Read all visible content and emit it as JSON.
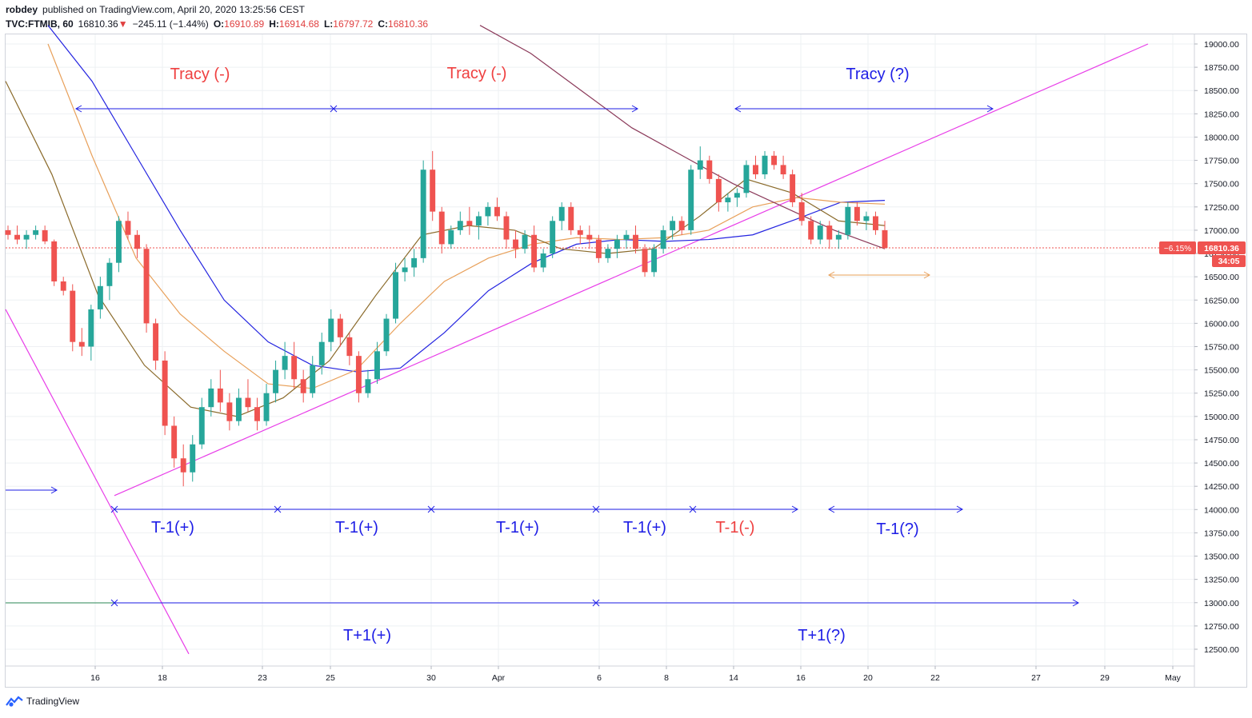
{
  "header": {
    "author": "robdey",
    "published": "published on TradingView.com, April 20, 2020 13:25:56 CEST",
    "symbol": "TVC:FTMIB, 60",
    "last": "16810.36",
    "change_arrow": "▼",
    "change": "−245.11 (−1.44%)",
    "o_label": "O:",
    "o_value": "16910.89",
    "h_label": "H:",
    "h_value": "16914.68",
    "l_label": "L:",
    "l_value": "16797.72",
    "c_label": "C:",
    "c_value": "16810.36"
  },
  "footer": {
    "brand": "TradingView",
    "logo_icon": "tradingview-logo-icon"
  },
  "price_badge": {
    "pct": "−6.15%",
    "price": "16810.36",
    "countdown": "34:05",
    "color": "#ef5350"
  },
  "colors": {
    "up": "#26a69a",
    "down": "#ef5350",
    "annotation_blue": "#1e1ee6",
    "annotation_red": "#ef4040",
    "trendline": "#e83ee8",
    "ma_blue": "#2424e0",
    "ma_orange": "#e8a05a",
    "ma_brown": "#8a6a2a",
    "ma_maroon": "#8b3a5a"
  },
  "chart_data": {
    "type": "candlestick",
    "instrument": "FTSE MIB (TVC:FTMIB)",
    "timeframe": "60",
    "y_axis": {
      "min": 12400,
      "max": 19050,
      "ticks": [
        "19000.00",
        "18750.00",
        "18500.00",
        "18250.00",
        "18000.00",
        "17750.00",
        "17500.00",
        "17250.00",
        "17000.00",
        "16750.00",
        "16500.00",
        "16250.00",
        "16000.00",
        "15750.00",
        "15500.00",
        "15250.00",
        "15000.00",
        "14750.00",
        "14500.00",
        "14250.00",
        "14000.00",
        "13750.00",
        "13500.00",
        "13250.00",
        "13000.00",
        "12750.00",
        "12500.00"
      ]
    },
    "x_axis": {
      "ticks": [
        "16",
        "18",
        "23",
        "25",
        "30",
        "Apr",
        "6",
        "8",
        "14",
        "16",
        "20",
        "22",
        "27",
        "29",
        "May"
      ]
    },
    "last_price": 16810.36,
    "candles_ohlc": [
      [
        17000,
        17050,
        16900,
        16950
      ],
      [
        16950,
        17050,
        16850,
        16900
      ],
      [
        16900,
        17000,
        16800,
        16950
      ],
      [
        16950,
        17050,
        16900,
        17000
      ],
      [
        17000,
        17050,
        16850,
        16880
      ],
      [
        16880,
        16900,
        16400,
        16450
      ],
      [
        16450,
        16500,
        16300,
        16350
      ],
      [
        16350,
        16420,
        15700,
        15800
      ],
      [
        15800,
        15950,
        15650,
        15750
      ],
      [
        15750,
        16200,
        15600,
        16150
      ],
      [
        16150,
        16500,
        16050,
        16400
      ],
      [
        16400,
        16700,
        16250,
        16650
      ],
      [
        16650,
        17150,
        16550,
        17100
      ],
      [
        17100,
        17200,
        16900,
        16950
      ],
      [
        16950,
        17000,
        16700,
        16800
      ],
      [
        16800,
        16850,
        15900,
        16000
      ],
      [
        16000,
        16050,
        15500,
        15600
      ],
      [
        15600,
        15700,
        14800,
        14900
      ],
      [
        14900,
        15000,
        14450,
        14550
      ],
      [
        14550,
        14700,
        14250,
        14400
      ],
      [
        14400,
        14800,
        14300,
        14700
      ],
      [
        14700,
        15200,
        14650,
        15100
      ],
      [
        15100,
        15400,
        15000,
        15300
      ],
      [
        15300,
        15500,
        15050,
        15150
      ],
      [
        15150,
        15250,
        14850,
        14950
      ],
      [
        14950,
        15300,
        14900,
        15200
      ],
      [
        15200,
        15400,
        15050,
        15100
      ],
      [
        15100,
        15200,
        14850,
        14950
      ],
      [
        14950,
        15350,
        14900,
        15250
      ],
      [
        15250,
        15600,
        15150,
        15500
      ],
      [
        15500,
        15800,
        15400,
        15650
      ],
      [
        15650,
        15800,
        15300,
        15400
      ],
      [
        15400,
        15500,
        15150,
        15250
      ],
      [
        15250,
        15650,
        15200,
        15550
      ],
      [
        15550,
        15900,
        15450,
        15800
      ],
      [
        15800,
        16150,
        15700,
        16050
      ],
      [
        16050,
        16100,
        15750,
        15850
      ],
      [
        15850,
        15900,
        15550,
        15650
      ],
      [
        15650,
        15700,
        15150,
        15250
      ],
      [
        15250,
        15500,
        15200,
        15400
      ],
      [
        15400,
        15800,
        15350,
        15700
      ],
      [
        15700,
        16100,
        15650,
        16050
      ],
      [
        16050,
        16650,
        16000,
        16550
      ],
      [
        16550,
        16700,
        16450,
        16600
      ],
      [
        16600,
        16800,
        16500,
        16700
      ],
      [
        16700,
        17750,
        16650,
        17650
      ],
      [
        17650,
        17850,
        17100,
        17200
      ],
      [
        17200,
        17250,
        16750,
        16850
      ],
      [
        16850,
        17050,
        16800,
        17000
      ],
      [
        17000,
        17200,
        16950,
        17100
      ],
      [
        17100,
        17250,
        16950,
        17050
      ],
      [
        17050,
        17200,
        16900,
        17150
      ],
      [
        17150,
        17300,
        17050,
        17250
      ],
      [
        17250,
        17350,
        17100,
        17150
      ],
      [
        17150,
        17200,
        16800,
        16900
      ],
      [
        16900,
        17000,
        16700,
        16800
      ],
      [
        16800,
        17000,
        16750,
        16950
      ],
      [
        16950,
        17050,
        16550,
        16600
      ],
      [
        16600,
        16800,
        16550,
        16750
      ],
      [
        16750,
        17150,
        16700,
        17100
      ],
      [
        17100,
        17300,
        17000,
        17250
      ],
      [
        17250,
        17300,
        16950,
        17000
      ],
      [
        17000,
        17050,
        16850,
        16950
      ],
      [
        16950,
        17050,
        16800,
        16900
      ],
      [
        16900,
        16950,
        16650,
        16700
      ],
      [
        16700,
        16850,
        16650,
        16800
      ],
      [
        16800,
        16950,
        16700,
        16900
      ],
      [
        16900,
        17000,
        16800,
        16950
      ],
      [
        16950,
        17050,
        16750,
        16800
      ],
      [
        16800,
        16850,
        16500,
        16550
      ],
      [
        16550,
        16850,
        16500,
        16800
      ],
      [
        16800,
        17050,
        16750,
        17000
      ],
      [
        17000,
        17150,
        16900,
        17100
      ],
      [
        17100,
        17150,
        16950,
        17000
      ],
      [
        17000,
        17700,
        16950,
        17650
      ],
      [
        17650,
        17900,
        17550,
        17750
      ],
      [
        17750,
        17800,
        17500,
        17550
      ],
      [
        17550,
        17600,
        17200,
        17300
      ],
      [
        17300,
        17400,
        17200,
        17350
      ],
      [
        17350,
        17450,
        17250,
        17400
      ],
      [
        17400,
        17750,
        17350,
        17700
      ],
      [
        17700,
        17800,
        17550,
        17600
      ],
      [
        17600,
        17850,
        17550,
        17800
      ],
      [
        17800,
        17850,
        17650,
        17700
      ],
      [
        17700,
        17800,
        17550,
        17600
      ],
      [
        17600,
        17650,
        17250,
        17300
      ],
      [
        17300,
        17400,
        17050,
        17100
      ],
      [
        17100,
        17150,
        16850,
        16900
      ],
      [
        16900,
        17100,
        16850,
        17050
      ],
      [
        17050,
        17100,
        16800,
        16900
      ],
      [
        16900,
        17000,
        16800,
        16950
      ],
      [
        16950,
        17300,
        16900,
        17250
      ],
      [
        17250,
        17300,
        17050,
        17100
      ],
      [
        17100,
        17200,
        17000,
        17150
      ],
      [
        17150,
        17200,
        16950,
        17000
      ],
      [
        17000,
        17100,
        16800,
        16810
      ]
    ],
    "moving_averages": [
      {
        "color": "blue",
        "values": [
          19200,
          18600,
          17800,
          17000,
          16250,
          15800,
          15550,
          15480,
          15520,
          15900,
          16350,
          16650,
          16850,
          16900,
          16880,
          16900,
          16950,
          17120,
          17300,
          17320
        ]
      },
      {
        "color": "orange",
        "values": [
          19000,
          17800,
          16700,
          16100,
          15700,
          15350,
          15300,
          15500,
          16000,
          16450,
          16700,
          16850,
          16920,
          16900,
          16920,
          17000,
          17250,
          17350,
          17300,
          17280
        ]
      },
      {
        "color": "brown",
        "values": [
          18600,
          17600,
          16300,
          15550,
          15100,
          15000,
          15200,
          15600,
          16300,
          16950,
          17050,
          17000,
          16800,
          16750,
          16800,
          17150,
          17550,
          17400,
          17100,
          17050
        ]
      },
      {
        "color": "maroon",
        "values": [
          19200,
          18900,
          18500,
          18100,
          17800,
          17500,
          17250,
          17000,
          16800
        ]
      }
    ],
    "trendlines": [
      {
        "color": "magenta",
        "from": [
          14150,
          0.09
        ],
        "to": [
          19000,
          0.96
        ]
      },
      {
        "color": "magenta",
        "from": [
          16150,
          0.0
        ],
        "to": [
          12450,
          0.155
        ]
      }
    ],
    "annotations": [
      {
        "text": "Tracy (-)",
        "color": "red"
      },
      {
        "text": "Tracy (-)",
        "color": "red"
      },
      {
        "text": "Tracy (?)",
        "color": "blue"
      },
      {
        "text": "T-1(+)",
        "color": "blue"
      },
      {
        "text": "T-1(+)",
        "color": "blue"
      },
      {
        "text": "T-1(+)",
        "color": "blue"
      },
      {
        "text": "T-1(+)",
        "color": "blue"
      },
      {
        "text": "T-1(-)",
        "color": "red"
      },
      {
        "text": "T-1(?)",
        "color": "blue"
      },
      {
        "text": "T+1(+)",
        "color": "blue"
      },
      {
        "text": "T+1(?)",
        "color": "blue"
      }
    ]
  }
}
